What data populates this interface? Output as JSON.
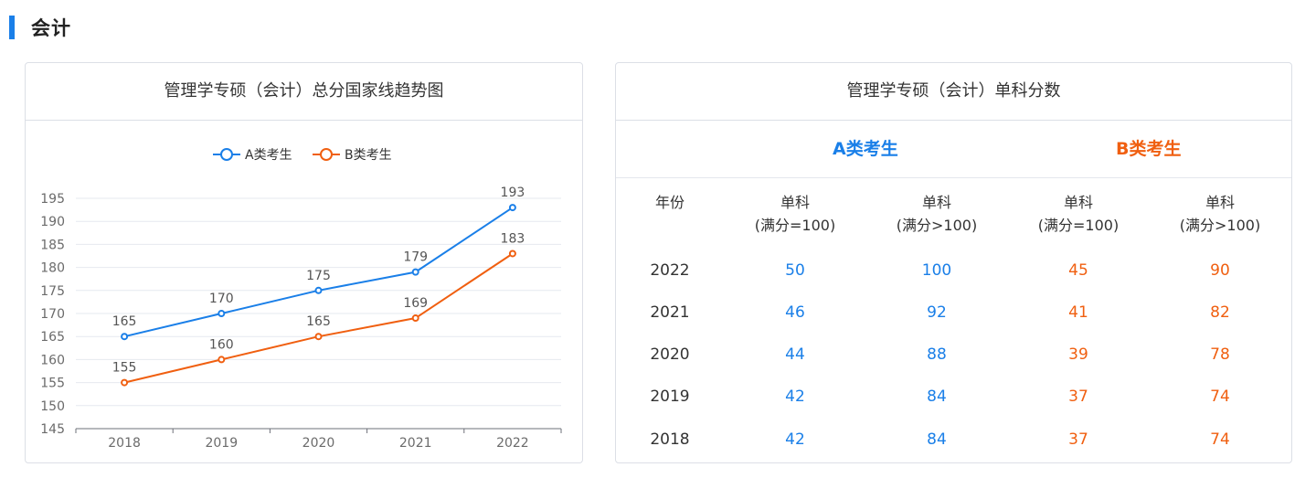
{
  "section": {
    "title": "会计"
  },
  "chart_card": {
    "title": "管理学专硕（会计）总分国家线趋势图"
  },
  "chart_data": {
    "type": "line",
    "title": "管理学专硕（会计）总分国家线趋势图",
    "categories": [
      "2018",
      "2019",
      "2020",
      "2021",
      "2022"
    ],
    "series": [
      {
        "name": "A类考生",
        "values": [
          165,
          170,
          175,
          179,
          193
        ],
        "color": "#1a7fe8"
      },
      {
        "name": "B类考生",
        "values": [
          155,
          160,
          165,
          169,
          183
        ],
        "color": "#f05f10"
      }
    ],
    "y_ticks": [
      "145",
      "150",
      "155",
      "160",
      "165",
      "170",
      "175",
      "180",
      "185",
      "190",
      "195"
    ],
    "ylim": [
      145,
      195
    ],
    "grid": true,
    "legend_position": "top-center",
    "data_labels": true
  },
  "table_card": {
    "title": "管理学专硕（会计）单科分数",
    "group_a": "A类考生",
    "group_b": "B类考生",
    "year_header": "年份",
    "headers": [
      {
        "line1": "单科",
        "line2": "(满分=100)"
      },
      {
        "line1": "单科",
        "line2": "(满分>100)"
      },
      {
        "line1": "单科",
        "line2": "(满分=100)"
      },
      {
        "line1": "单科",
        "line2": "(满分>100)"
      }
    ],
    "rows": [
      {
        "year": "2022",
        "a1": "50",
        "a2": "100",
        "b1": "45",
        "b2": "90"
      },
      {
        "year": "2021",
        "a1": "46",
        "a2": "92",
        "b1": "41",
        "b2": "82"
      },
      {
        "year": "2020",
        "a1": "44",
        "a2": "88",
        "b1": "39",
        "b2": "78"
      },
      {
        "year": "2019",
        "a1": "42",
        "a2": "84",
        "b1": "37",
        "b2": "74"
      },
      {
        "year": "2018",
        "a1": "42",
        "a2": "84",
        "b1": "37",
        "b2": "74"
      }
    ]
  }
}
